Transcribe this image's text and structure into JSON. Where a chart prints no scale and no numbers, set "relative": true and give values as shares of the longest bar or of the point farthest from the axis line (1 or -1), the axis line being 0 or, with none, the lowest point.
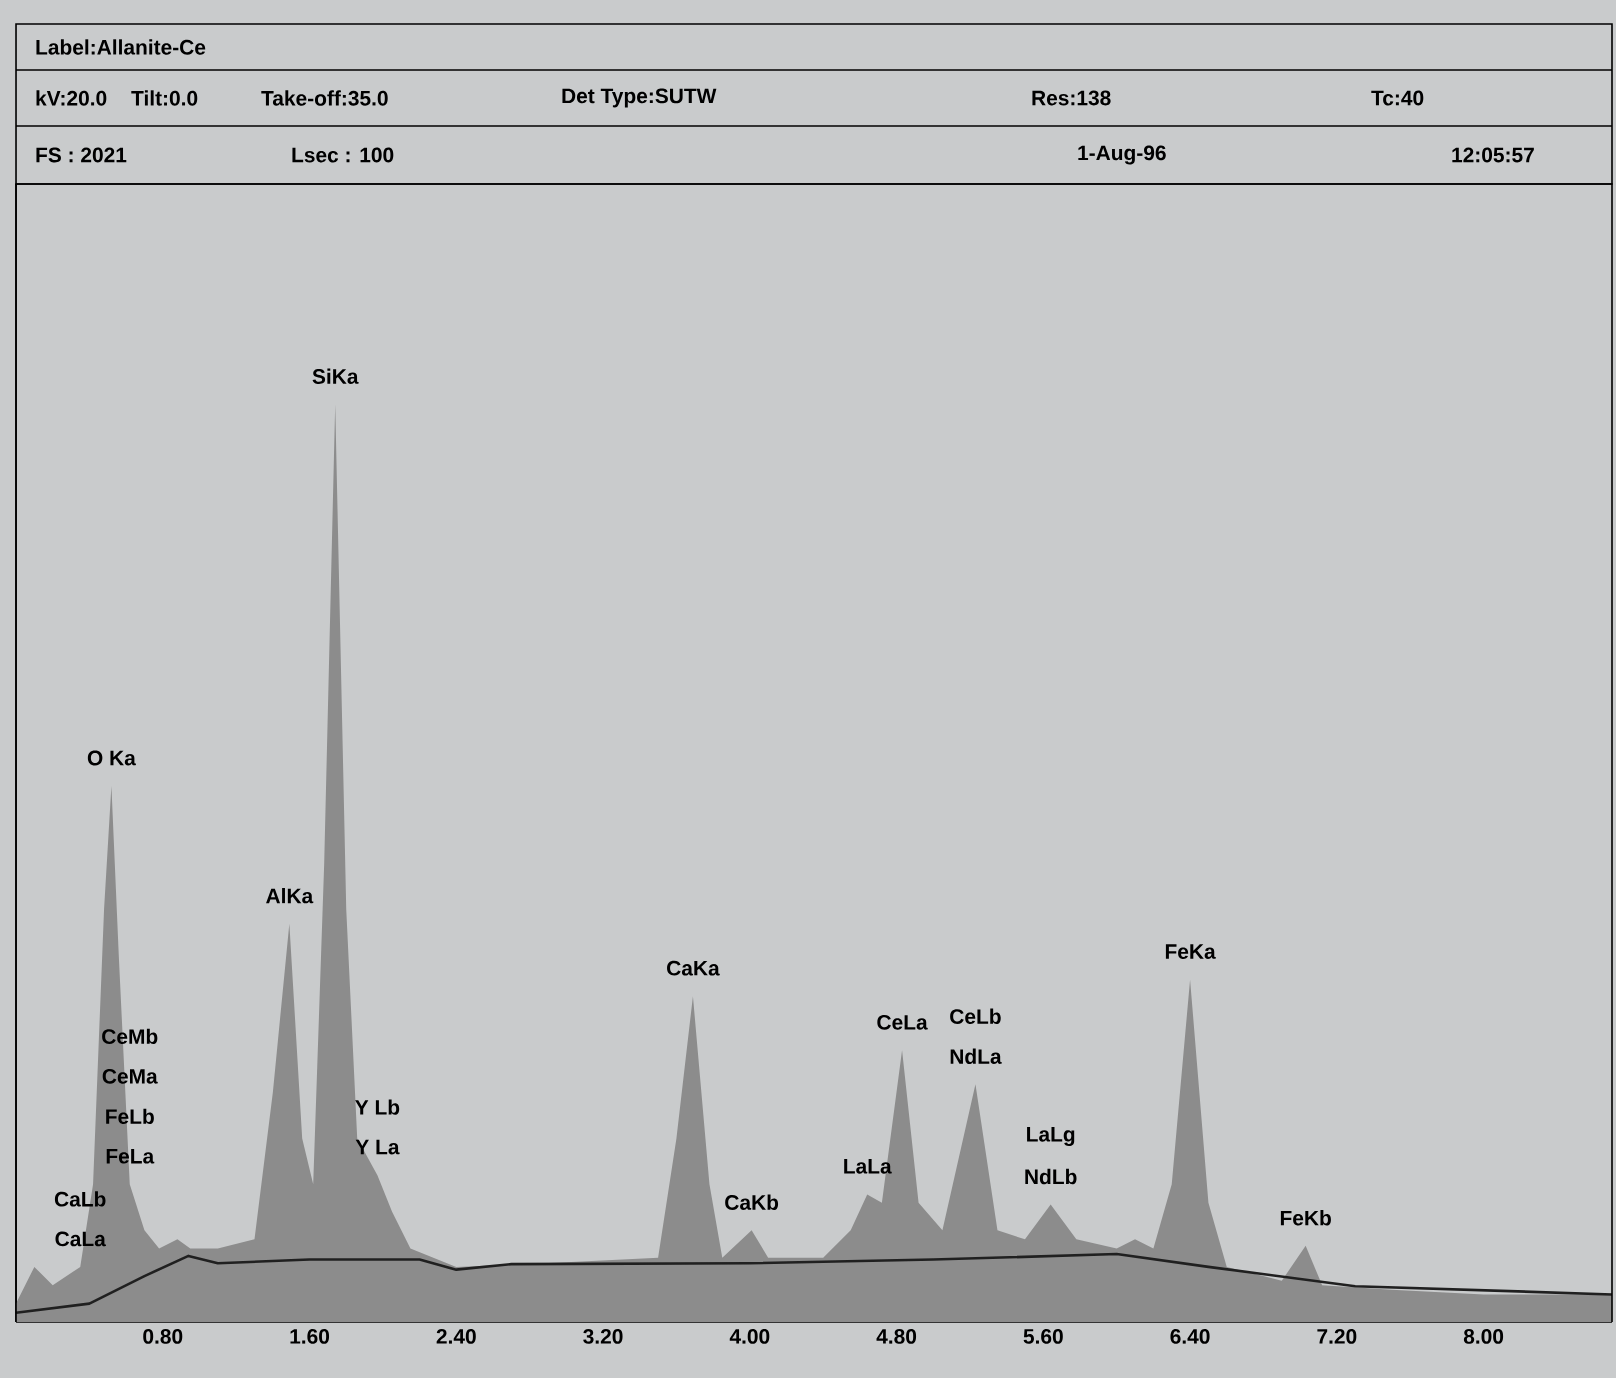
{
  "chart_data": {
    "type": "area",
    "title": "Label:Allanite-Ce",
    "relative": true,
    "xlim": [
      0,
      8.7
    ],
    "xticks": [
      {
        "value": 0.8,
        "label": "0.80"
      },
      {
        "value": 1.6,
        "label": "1.60"
      },
      {
        "value": 2.4,
        "label": "2.40"
      },
      {
        "value": 3.2,
        "label": "3.20"
      },
      {
        "value": 4.0,
        "label": "4.00"
      },
      {
        "value": 4.8,
        "label": "4.80"
      },
      {
        "value": 5.6,
        "label": "5.60"
      },
      {
        "value": 6.4,
        "label": "6.40"
      },
      {
        "value": 7.2,
        "label": "7.20"
      },
      {
        "value": 8.0,
        "label": "8.00"
      }
    ],
    "series": [
      {
        "color": "#8c8c8c",
        "x": [
          0.0,
          0.1,
          0.2,
          0.35,
          0.42,
          0.48,
          0.52,
          0.56,
          0.62,
          0.7,
          0.78,
          0.88,
          0.95,
          1.1,
          1.3,
          1.4,
          1.49,
          1.56,
          1.62,
          1.68,
          1.74,
          1.8,
          1.86,
          1.97,
          2.05,
          2.15,
          2.4,
          3.0,
          3.5,
          3.6,
          3.69,
          3.78,
          3.85,
          4.01,
          4.1,
          4.4,
          4.55,
          4.64,
          4.72,
          4.83,
          4.92,
          5.05,
          5.23,
          5.35,
          5.5,
          5.64,
          5.78,
          6.0,
          6.1,
          6.2,
          6.3,
          6.4,
          6.5,
          6.6,
          6.9,
          7.03,
          7.12,
          7.5,
          8.0,
          8.7
        ],
        "values": [
          0.02,
          0.06,
          0.04,
          0.06,
          0.15,
          0.45,
          0.584,
          0.4,
          0.15,
          0.1,
          0.08,
          0.09,
          0.08,
          0.08,
          0.09,
          0.25,
          0.434,
          0.2,
          0.15,
          0.5,
          1.0,
          0.45,
          0.2,
          0.16,
          0.12,
          0.08,
          0.06,
          0.065,
          0.07,
          0.2,
          0.355,
          0.15,
          0.07,
          0.1,
          0.07,
          0.07,
          0.1,
          0.139,
          0.13,
          0.296,
          0.13,
          0.1,
          0.259,
          0.1,
          0.09,
          0.128,
          0.09,
          0.08,
          0.09,
          0.08,
          0.15,
          0.373,
          0.13,
          0.06,
          0.045,
          0.083,
          0.04,
          0.035,
          0.03,
          0.03
        ]
      },
      {
        "type": "line",
        "color": "#202020",
        "x": [
          0.0,
          0.4,
          0.7,
          0.94,
          1.1,
          1.6,
          2.2,
          2.4,
          2.7,
          4.0,
          5.0,
          6.0,
          6.5,
          7.3,
          8.7
        ],
        "values": [
          0.01,
          0.02,
          0.05,
          0.072,
          0.064,
          0.068,
          0.068,
          0.057,
          0.063,
          0.064,
          0.068,
          0.074,
          0.06,
          0.039,
          0.03
        ]
      }
    ],
    "annotations": [
      "kV:20.0",
      "Tilt:0.0",
      "Take-off:35.0",
      "Det Type:SUTW",
      "Res:138",
      "Tc:40",
      "FS : 2021",
      "Lsec : 100",
      "1-Aug-96",
      "12:05:57",
      {
        "text": "SiKa",
        "x": 1.74,
        "y": 1.0
      },
      {
        "text": "O Ka",
        "x": 0.52,
        "y": 0.584
      },
      {
        "text": "AlKa",
        "x": 1.49,
        "y": 0.434
      },
      {
        "text": "CaLa",
        "x": 0.35,
        "y": 0.06
      },
      "CaLb",
      {
        "text": "FeLa",
        "x": 0.62,
        "y": 0.15
      },
      "FeLb",
      "CeMa",
      "CeMb",
      {
        "text": "Y La",
        "x": 1.97,
        "y": 0.16
      },
      "Y Lb",
      {
        "text": "CaKa",
        "x": 3.69,
        "y": 0.355
      },
      {
        "text": "CaKb",
        "x": 4.01,
        "y": 0.1
      },
      {
        "text": "LaLa",
        "x": 4.64,
        "y": 0.139
      },
      {
        "text": "CeLa",
        "x": 4.83,
        "y": 0.296
      },
      {
        "text": "NdLa",
        "x": 5.23,
        "y": 0.259
      },
      "CeLb",
      {
        "text": "NdLb",
        "x": 5.64,
        "y": 0.128
      },
      "LaLg",
      {
        "text": "FeKa",
        "x": 6.4,
        "y": 0.373
      },
      {
        "text": "FeKb",
        "x": 7.03,
        "y": 0.083
      }
    ]
  }
}
